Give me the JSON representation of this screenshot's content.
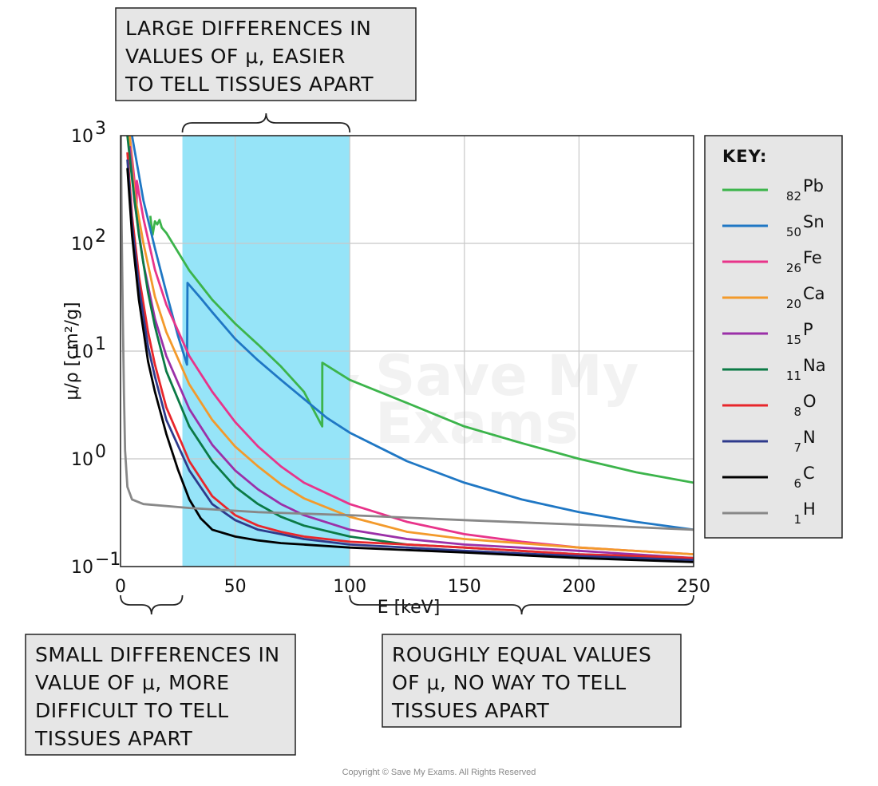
{
  "chart_data": {
    "type": "line",
    "title": "",
    "xlabel": "E [keV]",
    "ylabel": "μ/ρ [cm²/g]",
    "xlim": [
      0,
      250
    ],
    "ylim": [
      0.1,
      1000
    ],
    "yscale": "log",
    "grid": true,
    "x_ticks": [
      {
        "value": 0,
        "label": "0"
      },
      {
        "value": 50,
        "label": "50"
      },
      {
        "value": 100,
        "label": "100"
      },
      {
        "value": 150,
        "label": "150"
      },
      {
        "value": 200,
        "label": "200"
      },
      {
        "value": 250,
        "label": "250"
      }
    ],
    "y_ticks": [
      {
        "value": 0.1,
        "base": "10",
        "exp": "−1"
      },
      {
        "value": 1,
        "base": "10",
        "exp": "0"
      },
      {
        "value": 10,
        "base": "10",
        "exp": "1"
      },
      {
        "value": 100,
        "base": "10",
        "exp": "2"
      },
      {
        "value": 1000,
        "base": "10",
        "exp": "3"
      }
    ],
    "legend_title": "KEY:",
    "legend_position": "right",
    "series": [
      {
        "name": "Pb",
        "z": "82",
        "color": "#3cb44b",
        "points": [
          [
            13,
            180
          ],
          [
            14,
            120
          ],
          [
            15,
            160
          ],
          [
            16,
            150
          ],
          [
            17,
            165
          ],
          [
            18,
            140
          ],
          [
            20,
            125
          ],
          [
            30,
            56
          ],
          [
            40,
            30
          ],
          [
            50,
            18
          ],
          [
            60,
            11.5
          ],
          [
            70,
            7.2
          ],
          [
            80,
            4.2
          ],
          [
            88,
            2.0
          ],
          [
            88.01,
            7.8
          ],
          [
            100,
            5.4
          ],
          [
            125,
            3.3
          ],
          [
            150,
            2.0
          ],
          [
            175,
            1.4
          ],
          [
            200,
            1.0
          ],
          [
            225,
            0.75
          ],
          [
            250,
            0.6
          ]
        ]
      },
      {
        "name": "Sn",
        "z": "50",
        "color": "#1f77c4",
        "points": [
          [
            5,
            1000
          ],
          [
            10,
            250
          ],
          [
            15,
            90
          ],
          [
            20,
            35
          ],
          [
            25,
            14
          ],
          [
            29,
            7.5
          ],
          [
            29.2,
            43
          ],
          [
            35,
            31
          ],
          [
            40,
            23
          ],
          [
            50,
            13
          ],
          [
            60,
            8.2
          ],
          [
            70,
            5.4
          ],
          [
            80,
            3.6
          ],
          [
            90,
            2.4
          ],
          [
            100,
            1.75
          ],
          [
            125,
            0.95
          ],
          [
            150,
            0.6
          ],
          [
            175,
            0.42
          ],
          [
            200,
            0.32
          ],
          [
            225,
            0.26
          ],
          [
            250,
            0.22
          ]
        ]
      },
      {
        "name": "Fe",
        "z": "26",
        "color": "#e8348a",
        "points": [
          [
            4,
            1000
          ],
          [
            6,
            400
          ],
          [
            7,
            200
          ],
          [
            7.1,
            380
          ],
          [
            10,
            170
          ],
          [
            15,
            57
          ],
          [
            20,
            27
          ],
          [
            30,
            9
          ],
          [
            40,
            4.2
          ],
          [
            50,
            2.2
          ],
          [
            60,
            1.3
          ],
          [
            70,
            0.85
          ],
          [
            80,
            0.6
          ],
          [
            100,
            0.38
          ],
          [
            125,
            0.26
          ],
          [
            150,
            0.2
          ],
          [
            175,
            0.17
          ],
          [
            200,
            0.15
          ],
          [
            250,
            0.13
          ]
        ]
      },
      {
        "name": "Ca",
        "z": "20",
        "color": "#f39a2b",
        "points": [
          [
            4,
            1000
          ],
          [
            6,
            300
          ],
          [
            10,
            100
          ],
          [
            15,
            32
          ],
          [
            20,
            15
          ],
          [
            30,
            4.9
          ],
          [
            40,
            2.3
          ],
          [
            50,
            1.3
          ],
          [
            60,
            0.85
          ],
          [
            70,
            0.58
          ],
          [
            80,
            0.43
          ],
          [
            100,
            0.29
          ],
          [
            125,
            0.21
          ],
          [
            150,
            0.18
          ],
          [
            200,
            0.15
          ],
          [
            250,
            0.13
          ]
        ]
      },
      {
        "name": "P",
        "z": "15",
        "color": "#9b30a8",
        "points": [
          [
            4,
            800
          ],
          [
            6,
            250
          ],
          [
            10,
            65
          ],
          [
            15,
            20
          ],
          [
            20,
            9
          ],
          [
            30,
            2.9
          ],
          [
            40,
            1.35
          ],
          [
            50,
            0.78
          ],
          [
            60,
            0.52
          ],
          [
            70,
            0.38
          ],
          [
            80,
            0.3
          ],
          [
            100,
            0.22
          ],
          [
            125,
            0.18
          ],
          [
            150,
            0.16
          ],
          [
            200,
            0.14
          ],
          [
            250,
            0.12
          ]
        ]
      },
      {
        "name": "Na",
        "z": "11",
        "color": "#0b7a45",
        "points": [
          [
            3,
            1000
          ],
          [
            5,
            400
          ],
          [
            8,
            120
          ],
          [
            12,
            35
          ],
          [
            15,
            17
          ],
          [
            20,
            6.5
          ],
          [
            30,
            2.0
          ],
          [
            40,
            0.95
          ],
          [
            50,
            0.55
          ],
          [
            60,
            0.38
          ],
          [
            70,
            0.29
          ],
          [
            80,
            0.24
          ],
          [
            100,
            0.19
          ],
          [
            125,
            0.16
          ],
          [
            150,
            0.15
          ],
          [
            200,
            0.13
          ],
          [
            250,
            0.12
          ]
        ]
      },
      {
        "name": "O",
        "z": "8",
        "color": "#e8262b",
        "points": [
          [
            3,
            700
          ],
          [
            5,
            180
          ],
          [
            8,
            50
          ],
          [
            12,
            15
          ],
          [
            15,
            7.5
          ],
          [
            20,
            3.0
          ],
          [
            30,
            0.95
          ],
          [
            40,
            0.45
          ],
          [
            50,
            0.3
          ],
          [
            60,
            0.24
          ],
          [
            70,
            0.21
          ],
          [
            80,
            0.19
          ],
          [
            100,
            0.17
          ],
          [
            125,
            0.16
          ],
          [
            150,
            0.15
          ],
          [
            200,
            0.13
          ],
          [
            250,
            0.12
          ]
        ]
      },
      {
        "name": "N",
        "z": "7",
        "color": "#2e3a8c",
        "points": [
          [
            3,
            600
          ],
          [
            5,
            150
          ],
          [
            8,
            40
          ],
          [
            12,
            11
          ],
          [
            15,
            5.8
          ],
          [
            20,
            2.3
          ],
          [
            30,
            0.78
          ],
          [
            40,
            0.38
          ],
          [
            50,
            0.27
          ],
          [
            60,
            0.22
          ],
          [
            70,
            0.2
          ],
          [
            80,
            0.18
          ],
          [
            100,
            0.16
          ],
          [
            125,
            0.15
          ],
          [
            150,
            0.14
          ],
          [
            200,
            0.125
          ],
          [
            250,
            0.115
          ]
        ]
      },
      {
        "name": "C",
        "z": "6",
        "color": "#000000",
        "points": [
          [
            3,
            500
          ],
          [
            5,
            120
          ],
          [
            8,
            30
          ],
          [
            12,
            8
          ],
          [
            15,
            4.2
          ],
          [
            20,
            1.7
          ],
          [
            25,
            0.8
          ],
          [
            30,
            0.42
          ],
          [
            35,
            0.28
          ],
          [
            40,
            0.22
          ],
          [
            50,
            0.19
          ],
          [
            60,
            0.175
          ],
          [
            70,
            0.165
          ],
          [
            80,
            0.16
          ],
          [
            100,
            0.15
          ],
          [
            150,
            0.135
          ],
          [
            200,
            0.12
          ],
          [
            250,
            0.11
          ]
        ]
      },
      {
        "name": "H",
        "z": "1",
        "color": "#888888",
        "points": [
          [
            0.2,
            1000
          ],
          [
            0.5,
            150
          ],
          [
            1,
            20
          ],
          [
            1.5,
            4
          ],
          [
            2,
            1.2
          ],
          [
            3,
            0.55
          ],
          [
            5,
            0.42
          ],
          [
            10,
            0.38
          ],
          [
            30,
            0.35
          ],
          [
            60,
            0.32
          ],
          [
            100,
            0.3
          ],
          [
            150,
            0.27
          ],
          [
            200,
            0.245
          ],
          [
            250,
            0.22
          ]
        ]
      }
    ],
    "highlight_band": {
      "x_range": [
        27,
        100
      ],
      "color": "#96e4f8"
    },
    "annotations": [
      {
        "id": "top",
        "text": [
          "LARGE DIFFERENCES IN",
          "VALUES OF μ, EASIER",
          "TO TELL TISSUES APART"
        ],
        "x_range": [
          27,
          100
        ]
      },
      {
        "id": "bottom-left",
        "text": [
          "SMALL DIFFERENCES IN",
          "VALUE OF  μ, MORE",
          "DIFFICULT TO TELL",
          "TISSUES APART"
        ],
        "x_range": [
          0,
          27
        ]
      },
      {
        "id": "bottom-right",
        "text": [
          "ROUGHLY EQUAL VALUES",
          "OF μ, NO WAY TO TELL",
          "TISSUES APART"
        ],
        "x_range": [
          100,
          250
        ]
      }
    ]
  },
  "watermark": "Save My Exams",
  "copyright": "Copyright © Save My Exams. All Rights Reserved"
}
